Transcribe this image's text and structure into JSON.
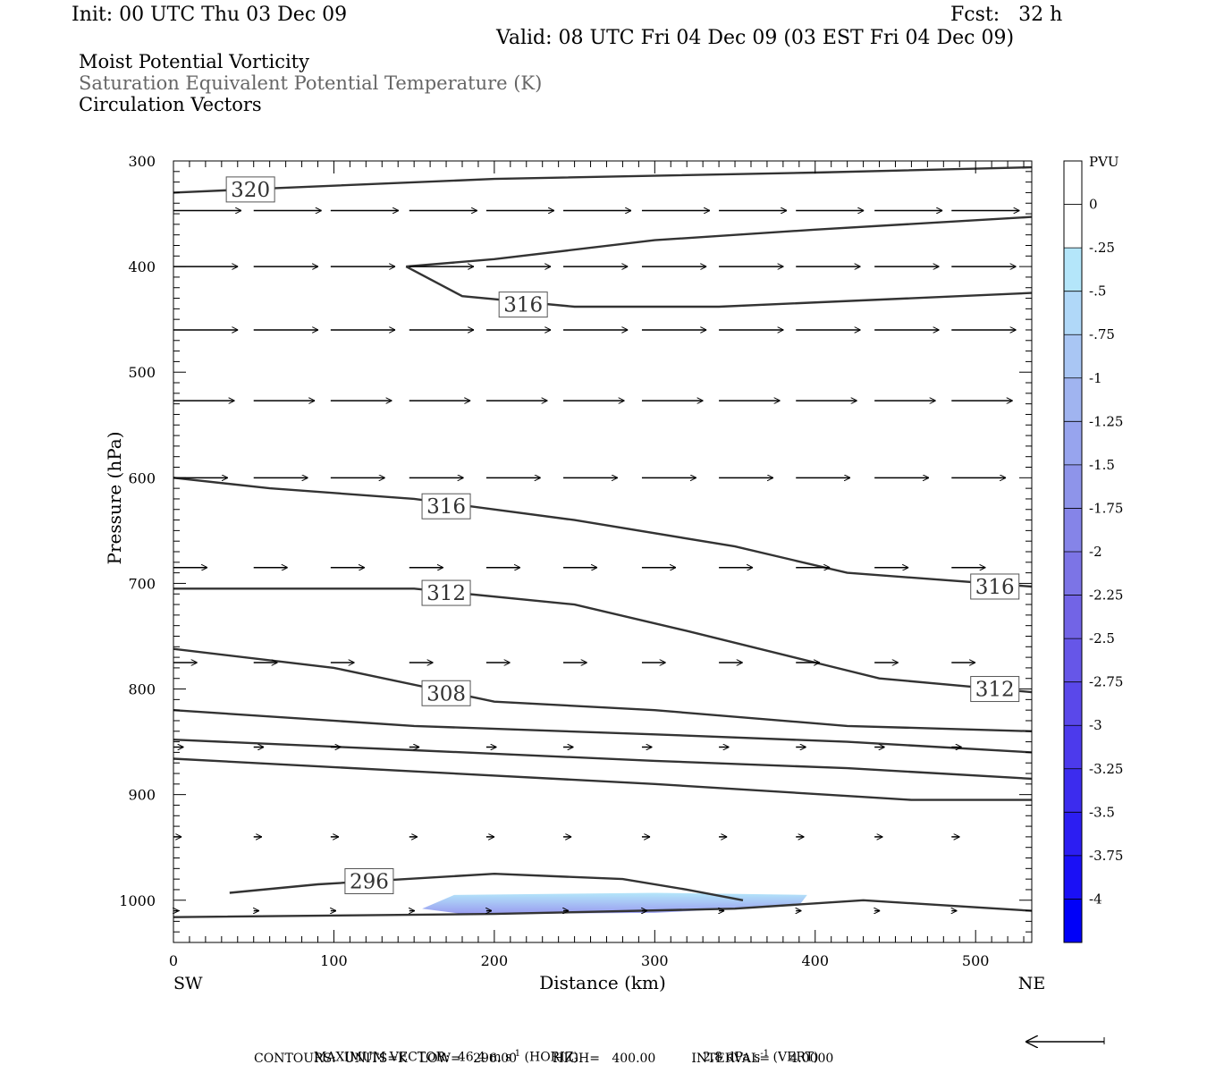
{
  "header": {
    "init": "Init: 00 UTC Thu 03 Dec 09",
    "fcst": "Fcst:   32 h",
    "valid": "Valid: 08 UTC Fri 04 Dec 09 (03 EST Fri 04 Dec 09)"
  },
  "fields": {
    "line1": "Moist Potential Vorticity",
    "line2": "Saturation Equivalent Potential Temperature (K)",
    "line3": "Circulation Vectors"
  },
  "chart_data": {
    "type": "cross-section",
    "xlabel": "Distance (km)",
    "ylabel": "Pressure (hPa)",
    "xlim": [
      0,
      535
    ],
    "ylim": [
      1040,
      300
    ],
    "x_ticks": [
      0,
      100,
      200,
      300,
      400,
      500
    ],
    "y_ticks": [
      300,
      400,
      500,
      600,
      700,
      800,
      900,
      1000
    ],
    "x_end_labels": {
      "left": "SW",
      "right": "NE"
    },
    "colorbar": {
      "unit": "PVU",
      "labels": [
        "0",
        "-.25",
        "-.5",
        "-.75",
        "-1",
        "-1.25",
        "-1.5",
        "-1.75",
        "-2",
        "-2.25",
        "-2.5",
        "-2.75",
        "-3",
        "-3.25",
        "-3.5",
        "-3.75",
        "-4"
      ],
      "colors": [
        "#ffffff",
        "#ffffff",
        "#b4e6fa",
        "#b0d8f8",
        "#a9c6f4",
        "#a0b4f0",
        "#97a4ee",
        "#8e94ea",
        "#8584e8",
        "#7c74e6",
        "#7264e6",
        "#6656e8",
        "#5a48ea",
        "#4c3aec",
        "#3c2cee",
        "#2c1ef2",
        "#1a10f6",
        "#0000f8"
      ]
    },
    "contour_labels": [
      {
        "text": "320",
        "x": 48,
        "p": 327
      },
      {
        "text": "316",
        "x": 218,
        "p": 436
      },
      {
        "text": "316",
        "x": 170,
        "p": 627
      },
      {
        "text": "316",
        "x": 512,
        "p": 703
      },
      {
        "text": "312",
        "x": 170,
        "p": 709
      },
      {
        "text": "312",
        "x": 512,
        "p": 800
      },
      {
        "text": "308",
        "x": 170,
        "p": 804
      },
      {
        "text": "296",
        "x": 122,
        "p": 982
      }
    ],
    "contours": [
      [
        [
          0,
          330
        ],
        [
          60,
          326
        ],
        [
          200,
          317
        ],
        [
          400,
          311
        ],
        [
          535,
          306
        ]
      ],
      [
        [
          145,
          400
        ],
        [
          200,
          393
        ],
        [
          300,
          375
        ],
        [
          400,
          365
        ],
        [
          535,
          353
        ]
      ],
      [
        [
          145,
          400
        ],
        [
          180,
          428
        ],
        [
          250,
          438
        ],
        [
          340,
          438
        ],
        [
          535,
          425
        ]
      ],
      [
        [
          0,
          600
        ],
        [
          60,
          610
        ],
        [
          150,
          620
        ],
        [
          250,
          640
        ],
        [
          350,
          665
        ],
        [
          420,
          690
        ],
        [
          535,
          703
        ]
      ],
      [
        [
          0,
          705
        ],
        [
          150,
          705
        ],
        [
          250,
          720
        ],
        [
          320,
          745
        ],
        [
          400,
          775
        ],
        [
          440,
          790
        ],
        [
          535,
          803
        ]
      ],
      [
        [
          0,
          762
        ],
        [
          100,
          780
        ],
        [
          200,
          812
        ],
        [
          300,
          820
        ],
        [
          420,
          835
        ],
        [
          535,
          840
        ]
      ],
      [
        [
          0,
          820
        ],
        [
          150,
          835
        ],
        [
          300,
          843
        ],
        [
          420,
          850
        ],
        [
          535,
          860
        ]
      ],
      [
        [
          0,
          848
        ],
        [
          150,
          858
        ],
        [
          300,
          868
        ],
        [
          420,
          875
        ],
        [
          535,
          885
        ]
      ],
      [
        [
          0,
          866
        ],
        [
          150,
          878
        ],
        [
          300,
          890
        ],
        [
          460,
          905
        ],
        [
          535,
          905
        ]
      ],
      [
        [
          35,
          993
        ],
        [
          90,
          985
        ],
        [
          200,
          975
        ],
        [
          280,
          980
        ],
        [
          320,
          990
        ],
        [
          355,
          1000
        ]
      ],
      [
        [
          0,
          1016
        ],
        [
          200,
          1013
        ],
        [
          350,
          1008
        ],
        [
          430,
          1000
        ],
        [
          535,
          1010
        ]
      ]
    ],
    "pv_shading": {
      "value_range": [
        -0.25,
        -1.25
      ],
      "outline": [
        [
          155,
          1008
        ],
        [
          175,
          995
        ],
        [
          300,
          993
        ],
        [
          395,
          995
        ],
        [
          390,
          1005
        ],
        [
          300,
          1012
        ],
        [
          180,
          1013
        ]
      ]
    },
    "vectors": [
      {
        "p": 347,
        "x": [
          0,
          50,
          98,
          147,
          195,
          243,
          292,
          340,
          388,
          437,
          485
        ],
        "u": 1.0,
        "w": 0
      },
      {
        "p": 400,
        "x": [
          0,
          50,
          98,
          147,
          195,
          243,
          292,
          340,
          388,
          437,
          485
        ],
        "u": 0.95,
        "w": 0
      },
      {
        "p": 460,
        "x": [
          0,
          50,
          98,
          147,
          195,
          243,
          292,
          340,
          388,
          437,
          485
        ],
        "u": 0.95,
        "w": 0
      },
      {
        "p": 527,
        "x": [
          0,
          50,
          98,
          147,
          195,
          243,
          292,
          340,
          388,
          437,
          485
        ],
        "u": 0.9,
        "w": 0
      },
      {
        "p": 600,
        "x": [
          0,
          50,
          98,
          147,
          195,
          243,
          292,
          340,
          388,
          437,
          485
        ],
        "u": 0.8,
        "w": 0
      },
      {
        "p": 685,
        "x": [
          0,
          50,
          98,
          147,
          195,
          243,
          292,
          340,
          388,
          437,
          485
        ],
        "u": 0.5,
        "w": 0
      },
      {
        "p": 775,
        "x": [
          0,
          50,
          98,
          147,
          195,
          243,
          292,
          340,
          388,
          437,
          485
        ],
        "u": 0.35,
        "w": 0
      },
      {
        "p": 855,
        "x": [
          0,
          50,
          98,
          147,
          195,
          243,
          292,
          340,
          388,
          437,
          485
        ],
        "u": 0.15,
        "w": 0
      },
      {
        "p": 940,
        "x": [
          0,
          50,
          98,
          147,
          195,
          243,
          292,
          340,
          388,
          437,
          485
        ],
        "u": 0.12,
        "w": 0
      },
      {
        "p": 1010,
        "x": [
          0,
          50,
          98,
          147,
          195,
          243,
          292,
          340,
          388,
          437,
          485
        ],
        "u": 0.08,
        "w": 0
      }
    ]
  },
  "footer": {
    "max_vector_prefix": "MAXIMUM VECTOR:  46.4 m s",
    "max_vector_horiz": " (HORIZ)",
    "max_vector_vert_prefix": "2.8 dPa s",
    "max_vector_vert": " (VERT)",
    "exponent": "-1",
    "contours": "CONTOURS:  UNITS=K   LOW=   296.00         HIGH=   400.00         INTERVAL=     4.0000"
  }
}
